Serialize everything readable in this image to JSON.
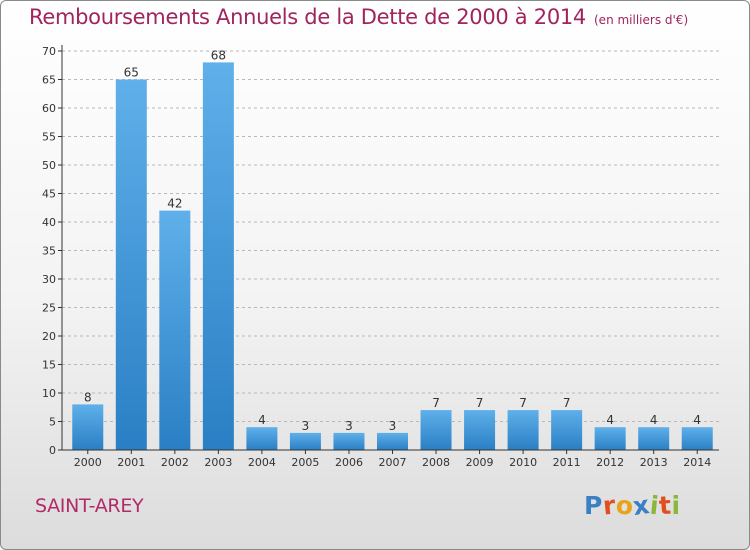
{
  "title": "Remboursements Annuels de la Dette de 2000 à 2014",
  "unit": "(en milliers d'€)",
  "city": "SAINT-AREY",
  "logo": {
    "text": "Proxiti",
    "letter_colors": [
      "#3b7fc4",
      "#e0501f",
      "#e8a31b",
      "#3b7fc4",
      "#8cb83a",
      "#e0501f",
      "#8cb83a"
    ]
  },
  "colors": {
    "bar_light": "#5fb0ea",
    "bar_dark": "#2a7fc4",
    "title": "#a0245e",
    "axis": "#333333",
    "grid": "#b8b8b8"
  },
  "chart_data": {
    "type": "bar",
    "title": "Remboursements Annuels de la Dette de 2000 à 2014",
    "subtitle": "(en milliers d'€)",
    "xlabel": "",
    "ylabel": "",
    "categories": [
      "2000",
      "2001",
      "2002",
      "2003",
      "2004",
      "2005",
      "2006",
      "2007",
      "2008",
      "2009",
      "2010",
      "2011",
      "2012",
      "2013",
      "2014"
    ],
    "values": [
      8,
      65,
      42,
      68,
      4,
      3,
      3,
      3,
      7,
      7,
      7,
      7,
      4,
      4,
      4
    ],
    "ylim": [
      0,
      70
    ],
    "yticks": [
      0,
      5,
      10,
      15,
      20,
      25,
      30,
      35,
      40,
      45,
      50,
      55,
      60,
      65,
      70
    ],
    "grid": "dashed horizontal",
    "data_labels": true
  }
}
